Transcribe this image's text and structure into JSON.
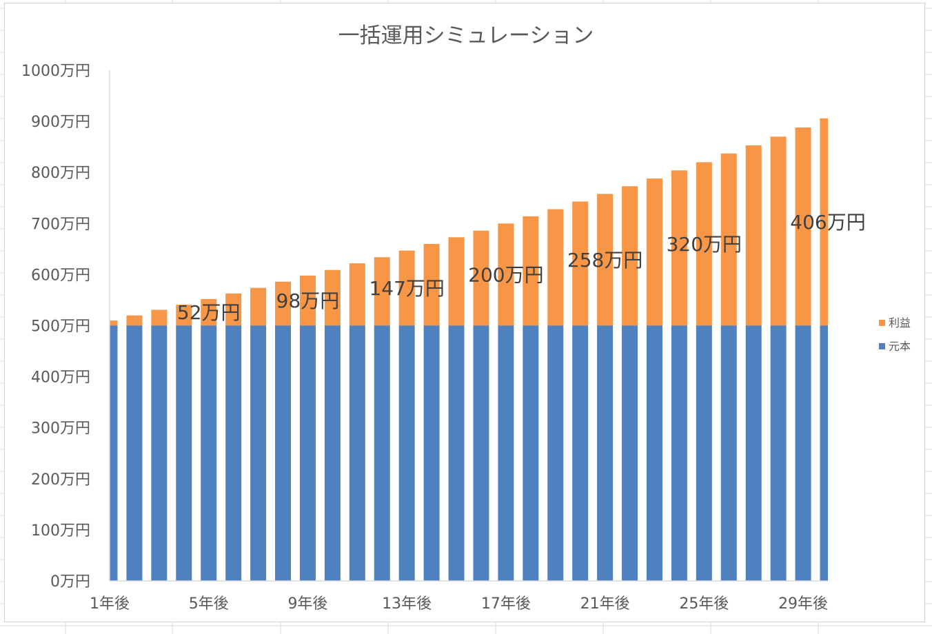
{
  "chart_data": {
    "type": "bar",
    "stacked": true,
    "title": "一括運用シミュレーション",
    "categories": [
      "1年後",
      "2年後",
      "3年後",
      "4年後",
      "5年後",
      "6年後",
      "7年後",
      "8年後",
      "9年後",
      "10年後",
      "11年後",
      "12年後",
      "13年後",
      "14年後",
      "15年後",
      "16年後",
      "17年後",
      "18年後",
      "19年後",
      "20年後",
      "21年後",
      "22年後",
      "23年後",
      "24年後",
      "25年後",
      "26年後",
      "27年後",
      "28年後",
      "29年後",
      "30年後"
    ],
    "x_tick_labels": [
      "1年後",
      "5年後",
      "9年後",
      "13年後",
      "17年後",
      "21年後",
      "25年後",
      "29年後"
    ],
    "series": [
      {
        "name": "元本",
        "color": "#4e81bd",
        "values": [
          500,
          500,
          500,
          500,
          500,
          500,
          500,
          500,
          500,
          500,
          500,
          500,
          500,
          500,
          500,
          500,
          500,
          500,
          500,
          500,
          500,
          500,
          500,
          500,
          500,
          500,
          500,
          500,
          500,
          500
        ]
      },
      {
        "name": "利益",
        "color": "#f79646",
        "values": [
          10,
          20,
          31,
          41,
          52,
          63,
          74,
          86,
          98,
          109,
          122,
          134,
          147,
          160,
          173,
          186,
          200,
          214,
          228,
          243,
          258,
          273,
          288,
          304,
          320,
          337,
          353,
          370,
          388,
          406
        ]
      }
    ],
    "data_labels": [
      {
        "category": "5年後",
        "text": "52万円"
      },
      {
        "category": "9年後",
        "text": "98万円"
      },
      {
        "category": "13年後",
        "text": "147万円"
      },
      {
        "category": "17年後",
        "text": "200万円"
      },
      {
        "category": "21年後",
        "text": "258万円"
      },
      {
        "category": "25年後",
        "text": "320万円"
      },
      {
        "category": "30年後",
        "text": "406万円"
      }
    ],
    "ylim": [
      0,
      1000
    ],
    "y_tick_labels": [
      "0万円",
      "100万円",
      "200万円",
      "300万円",
      "400万円",
      "500万円",
      "600万円",
      "700万円",
      "800万円",
      "900万円",
      "1000万円"
    ],
    "grid": false,
    "legend": "right",
    "legend_entries": [
      "利益",
      "元本"
    ]
  }
}
